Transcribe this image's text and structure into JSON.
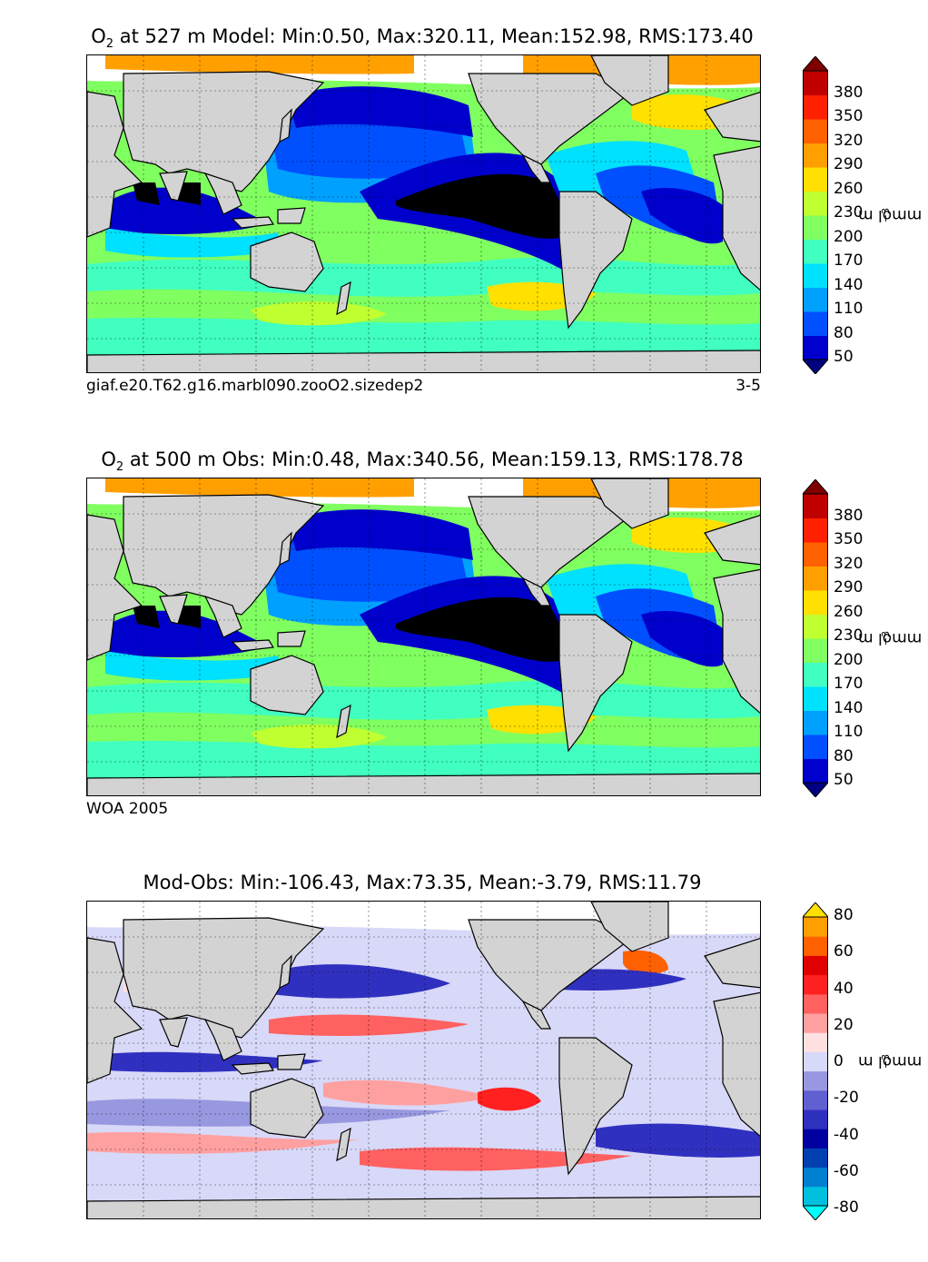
{
  "panels": [
    {
      "id": "model",
      "title_var": "O",
      "title_sub": "2",
      "title_rest": " at 527 m Model: Min:0.50, Max:320.11, Mean:152.98, RMS:173.40",
      "caption_left": "giaf.e20.T62.g16.marbl090.zooO2.sizedep2",
      "caption_right": "3-5",
      "colorbar": {
        "ticks": [
          "380",
          "350",
          "320",
          "290",
          "260",
          "230",
          "200",
          "170",
          "140",
          "110",
          "80",
          "50"
        ],
        "unit_base": "mmol m",
        "unit_exp": "−3",
        "colors": [
          "#000080",
          "#0000cd",
          "#0050ff",
          "#00a0ff",
          "#00e0ff",
          "#40ffc0",
          "#80ff60",
          "#c0ff30",
          "#ffe000",
          "#ffa000",
          "#ff6000",
          "#ff2000",
          "#c00000",
          "#800000"
        ]
      }
    },
    {
      "id": "obs",
      "title_var": "O",
      "title_sub": "2",
      "title_rest": " at 500 m Obs: Min:0.48, Max:340.56, Mean:159.13, RMS:178.78",
      "caption_left": "WOA 2005",
      "caption_right": "",
      "colorbar": {
        "ticks": [
          "380",
          "350",
          "320",
          "290",
          "260",
          "230",
          "200",
          "170",
          "140",
          "110",
          "80",
          "50"
        ],
        "unit_base": "mmol m",
        "unit_exp": "−3",
        "colors": [
          "#000080",
          "#0000cd",
          "#0050ff",
          "#00a0ff",
          "#00e0ff",
          "#40ffc0",
          "#80ff60",
          "#c0ff30",
          "#ffe000",
          "#ffa000",
          "#ff6000",
          "#ff2000",
          "#c00000",
          "#800000"
        ]
      }
    },
    {
      "id": "diff",
      "title_var": "",
      "title_sub": "",
      "title_rest": "Mod-Obs: Min:-106.43, Max:73.35, Mean:-3.79, RMS:11.79",
      "caption_left": "",
      "caption_right": "",
      "colorbar": {
        "ticks": [
          "80",
          "60",
          "40",
          "20",
          "0",
          "-20",
          "-40",
          "-60",
          "-80"
        ],
        "unit_base": "mmol m",
        "unit_exp": "−3",
        "colors": [
          "#00ffff",
          "#00c0e0",
          "#0080d0",
          "#0040b0",
          "#0000a0",
          "#3030c0",
          "#6060d0",
          "#9898e0",
          "#d8d8f8",
          "#ffe0e0",
          "#ffa0a0",
          "#ff6060",
          "#ff2020",
          "#e00000",
          "#ff6000",
          "#ffa000",
          "#ffe000"
        ]
      }
    }
  ]
}
